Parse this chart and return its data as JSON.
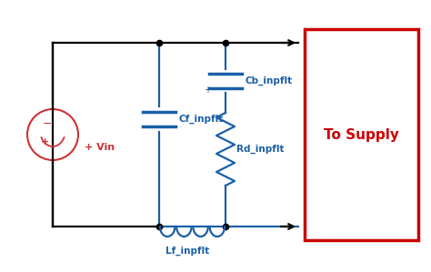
{
  "bg_color": "#ffffff",
  "wire_color_black": "#000000",
  "wire_color_blue": "#1a5fa8",
  "source_color": "#cc3333",
  "supply_box_color": "#cc0000",
  "supply_text_color": "#cc0000",
  "supply_text": "To Supply",
  "label_lf": "Lf_inpflt",
  "label_cf": "Cf_inpflt",
  "label_rd": "Rd_inpflt",
  "label_cb": "Cb_inpflt",
  "label_vin": "+ Vin"
}
